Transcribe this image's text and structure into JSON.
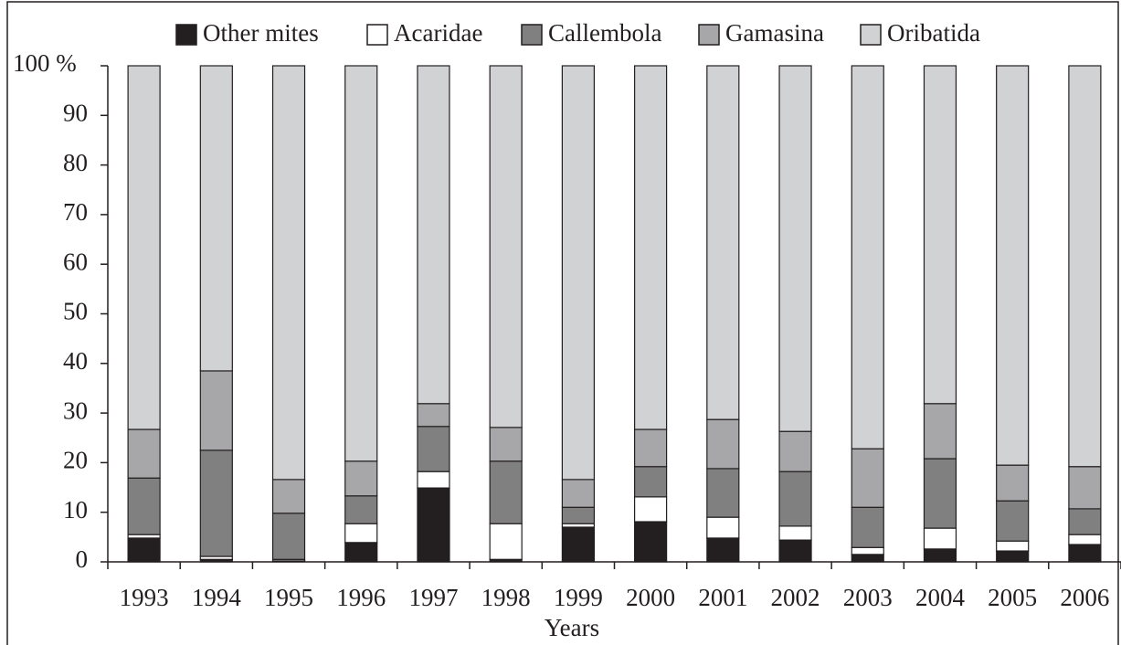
{
  "chart_data": {
    "type": "bar",
    "stacked": true,
    "categories": [
      "1993",
      "1994",
      "1995",
      "1996",
      "1997",
      "1998",
      "1999",
      "2000",
      "2001",
      "2002",
      "2003",
      "2004",
      "2005",
      "2006"
    ],
    "x_label": "Years",
    "series": [
      {
        "name": "Other mites",
        "color": "#231f20",
        "values": [
          4.8,
          0.5,
          0.2,
          3.9,
          14.9,
          0.5,
          7.0,
          8.1,
          4.8,
          4.4,
          1.5,
          2.6,
          2.2,
          3.5
        ]
      },
      {
        "name": "Acaridae",
        "color": "#ffffff",
        "values": [
          0.7,
          0.6,
          0.3,
          3.8,
          3.3,
          7.2,
          0.7,
          5.0,
          4.2,
          2.8,
          1.4,
          4.2,
          2.0,
          2.0
        ]
      },
      {
        "name": "Callembola",
        "color": "#808080",
        "values": [
          11.4,
          21.4,
          9.3,
          5.6,
          9.1,
          12.6,
          3.3,
          6.1,
          9.8,
          11.0,
          8.1,
          14.0,
          8.1,
          5.2
        ]
      },
      {
        "name": "Gamasina",
        "color": "#a7a7a9",
        "values": [
          9.8,
          16.0,
          6.8,
          7.0,
          4.6,
          6.8,
          5.6,
          7.5,
          9.9,
          8.1,
          11.8,
          11.1,
          7.2,
          8.5
        ]
      },
      {
        "name": "Oribatida",
        "color": "#d1d2d4",
        "values": [
          73.3,
          61.5,
          83.4,
          79.7,
          68.1,
          72.9,
          83.4,
          73.3,
          71.3,
          73.7,
          77.2,
          68.1,
          80.5,
          80.8
        ]
      }
    ],
    "ylim": [
      0,
      100
    ],
    "yticks": [
      0,
      10,
      20,
      30,
      40,
      50,
      60,
      70,
      80,
      90,
      {
        "value": 100,
        "label": "100 %"
      }
    ],
    "legend": "top"
  }
}
